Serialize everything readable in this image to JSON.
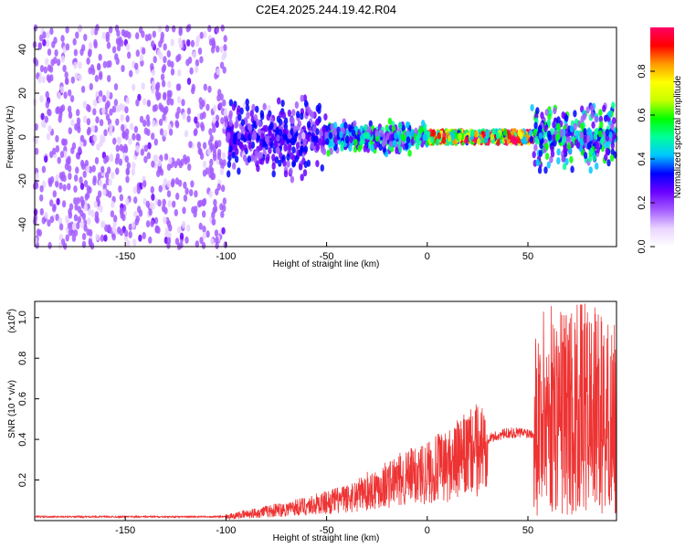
{
  "title": "C2E4.2025.244.19.42.R04",
  "chart_data": [
    {
      "type": "heatmap",
      "name": "spectrogram",
      "xlabel": "Height of straight line (km)",
      "ylabel": "Frequency (Hz)",
      "xlim": [
        -195,
        94
      ],
      "ylim": [
        -50,
        50
      ],
      "xticks": [
        -150,
        -100,
        -50,
        0,
        50
      ],
      "yticks": [
        -40,
        -20,
        0,
        20,
        40
      ],
      "colorbar": {
        "label": "Normalized spectral amplitude",
        "range": [
          0,
          1
        ],
        "ticks": [
          0.0,
          0.2,
          0.4,
          0.6,
          0.8
        ],
        "colors": [
          "#ffffff",
          "#e9d4ff",
          "#a35cff",
          "#6a00ff",
          "#0000ff",
          "#00c8ff",
          "#00ff9a",
          "#00ff00",
          "#c8ff00",
          "#ffff00",
          "#ff9a00",
          "#ff0000",
          "#ff0066"
        ]
      },
      "regions": [
        {
          "x": [
            -195,
            -100
          ],
          "description": "noise",
          "level": 0.12
        },
        {
          "x": [
            -100,
            -50
          ],
          "description": "dispersed signal",
          "level": 0.25
        },
        {
          "x": [
            -50,
            0
          ],
          "description": "narrow band",
          "level": 0.45
        },
        {
          "x": [
            0,
            50
          ],
          "description": "strong tone near 0 Hz",
          "level": 0.95
        },
        {
          "x": [
            50,
            94
          ],
          "description": "noisy signal",
          "level": 0.35
        }
      ]
    },
    {
      "type": "line",
      "name": "snr",
      "xlabel": "Height of straight line (km)",
      "ylabel": "SNR (10 * v/v)",
      "yscale_label": "(x10",
      "yscale_exp": "4",
      "xlim": [
        -195,
        94
      ],
      "ylim": [
        0,
        1.08
      ],
      "xticks": [
        -150,
        -100,
        -50,
        0,
        50
      ],
      "yticks": [
        0.2,
        0.4,
        0.6,
        0.8,
        1.0
      ],
      "color": "#ee3333",
      "envelope": [
        {
          "x": -195,
          "y": 0.02
        },
        {
          "x": -100,
          "y": 0.02
        },
        {
          "x": -80,
          "y": 0.05
        },
        {
          "x": -60,
          "y": 0.08
        },
        {
          "x": -40,
          "y": 0.12
        },
        {
          "x": -20,
          "y": 0.2
        },
        {
          "x": 0,
          "y": 0.27
        },
        {
          "x": 10,
          "y": 0.3
        },
        {
          "x": 20,
          "y": 0.36
        },
        {
          "x": 30,
          "y": 0.42
        },
        {
          "x": 40,
          "y": 0.45
        },
        {
          "x": 50,
          "y": 0.45
        },
        {
          "x": 53,
          "y": 0.45
        },
        {
          "x": 60,
          "y": 0.5
        },
        {
          "x": 70,
          "y": 0.5
        },
        {
          "x": 80,
          "y": 0.5
        },
        {
          "x": 94,
          "y": 0.45
        }
      ]
    }
  ]
}
